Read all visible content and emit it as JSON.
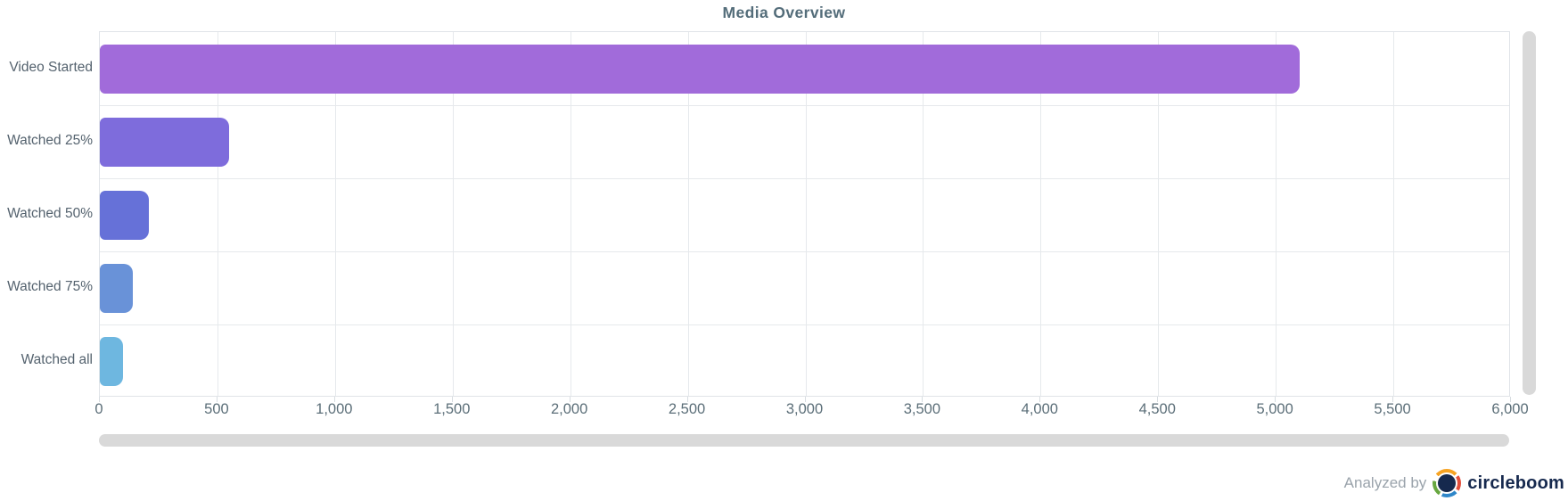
{
  "chart_data": {
    "type": "bar",
    "orientation": "horizontal",
    "title": "Media Overview",
    "categories": [
      "Video Started",
      "Watched 25%",
      "Watched 50%",
      "Watched 75%",
      "Watched all"
    ],
    "values": [
      5100,
      550,
      210,
      140,
      100
    ],
    "bar_colors": [
      "#A16BDA",
      "#7E6CDC",
      "#6671D8",
      "#6992D8",
      "#6EB7E0"
    ],
    "xlim": [
      0,
      6000
    ],
    "x_tick_step": 500,
    "x_tick_labels": [
      "0",
      "500",
      "1,000",
      "1,500",
      "2,000",
      "2,500",
      "3,000",
      "3,500",
      "4,000",
      "4,500",
      "5,000",
      "5,500",
      "6,000"
    ],
    "grid": true,
    "legend": "none",
    "colors": {
      "title": "#546d7a",
      "axis_labels": "#5b6e78",
      "category_labels": "#54626e",
      "gridline": "#e6e9ec",
      "scrollbar": "#d9d9d9",
      "background": "#ffffff"
    }
  },
  "footer": {
    "analyzed_by_label": "Analyzed by",
    "brand": "circleboom",
    "brand_color": "#16294e"
  }
}
